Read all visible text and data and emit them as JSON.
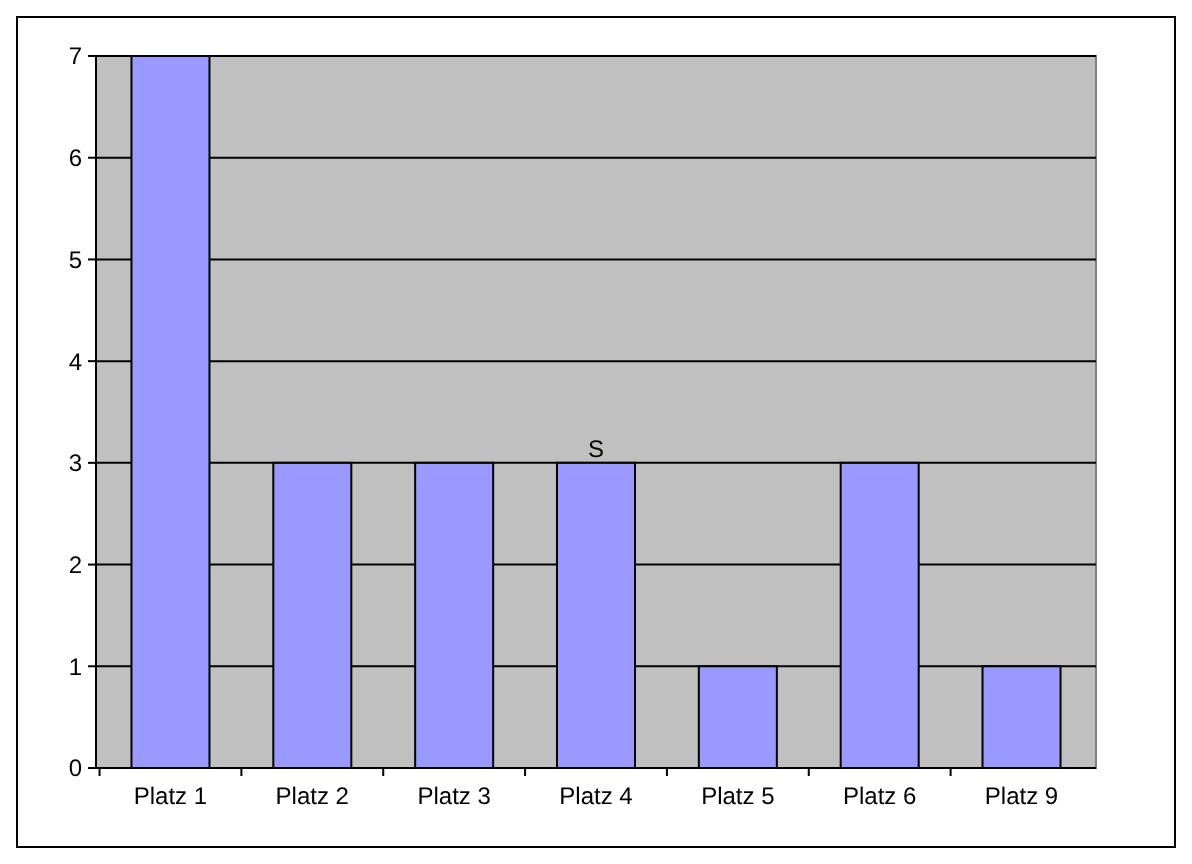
{
  "chart_data": {
    "type": "bar",
    "categories": [
      "Platz 1",
      "Platz 2",
      "Platz 3",
      "Platz 4",
      "Platz 5",
      "Platz 6",
      "Platz 9"
    ],
    "values": [
      7,
      3,
      3,
      3,
      1,
      3,
      1
    ],
    "color": "#9999ff",
    "ylim": [
      0,
      7
    ],
    "yticks": [
      0,
      1,
      2,
      3,
      4,
      5,
      6,
      7
    ],
    "grid": "y",
    "annotations": [
      {
        "text": "S",
        "x": "Platz 4",
        "y": 3
      }
    ]
  }
}
